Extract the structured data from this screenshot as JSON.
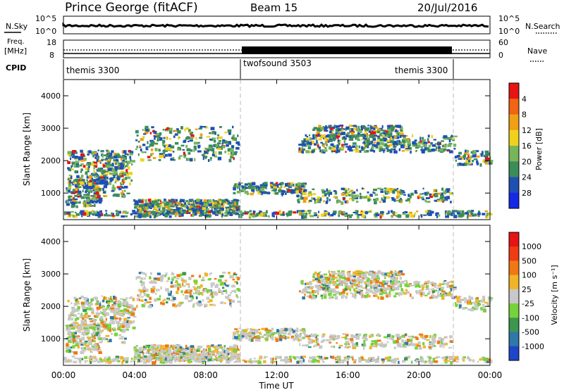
{
  "header": {
    "station": "Prince George (fitACF)",
    "beam": "Beam 15",
    "date": "20/Jul/2016"
  },
  "nsky_panel": {
    "left_label": "N.Sky",
    "right_label": "N.Search",
    "left_tick_top": "10^5",
    "left_tick_bottom": "10^0",
    "right_tick_top": "10^5",
    "right_tick_bottom": "10^0"
  },
  "freq_panel": {
    "left_label_1": "Freq.",
    "left_label_2": "[MHz]",
    "right_label": "Nave",
    "left_tick_top": "18",
    "left_tick_bottom": "8",
    "right_tick_top": "60",
    "right_tick_bottom": "0"
  },
  "cpid_panel": {
    "label": "CPID",
    "segments": [
      "themis 3300",
      "twofsound 3503",
      "themis 3300"
    ]
  },
  "chart_data": [
    {
      "type": "heatmap",
      "title": "",
      "ylabel": "Slant Range [km]",
      "xlabel": "Time UT",
      "x_ticks": [
        "00:00",
        "04:00",
        "08:00",
        "12:00",
        "16:00",
        "20:00",
        "00:00"
      ],
      "y_ticks": [
        "1000",
        "2000",
        "3000",
        "4000"
      ],
      "ylim": [
        180,
        4500
      ],
      "colorbar": {
        "label": "Power [dB]",
        "ticks": [
          "4",
          "8",
          "12",
          "16",
          "20",
          "24",
          "28"
        ],
        "colors": [
          "#1428e6",
          "#1e50b4",
          "#3c8c5a",
          "#78b45a",
          "#f0d21e",
          "#f0a014",
          "#f06414",
          "#e61414"
        ]
      }
    },
    {
      "type": "heatmap",
      "title": "",
      "ylabel": "Slant Range [km]",
      "xlabel": "Time UT",
      "x_ticks": [
        "00:00",
        "04:00",
        "08:00",
        "12:00",
        "16:00",
        "20:00",
        "00:00"
      ],
      "y_ticks": [
        "1000",
        "2000",
        "3000",
        "4000"
      ],
      "ylim": [
        180,
        4500
      ],
      "colorbar": {
        "label": "Velocity [m s⁻¹]",
        "ticks": [
          "1000",
          "500",
          "100",
          "25",
          "-25",
          "-100",
          "-500",
          "-1000"
        ],
        "colors": [
          "#1e46c8",
          "#2e78aa",
          "#3c9650",
          "#78d23c",
          "#c8c8c8",
          "#f0b428",
          "#f07814",
          "#f03c14",
          "#e61414"
        ]
      }
    }
  ]
}
